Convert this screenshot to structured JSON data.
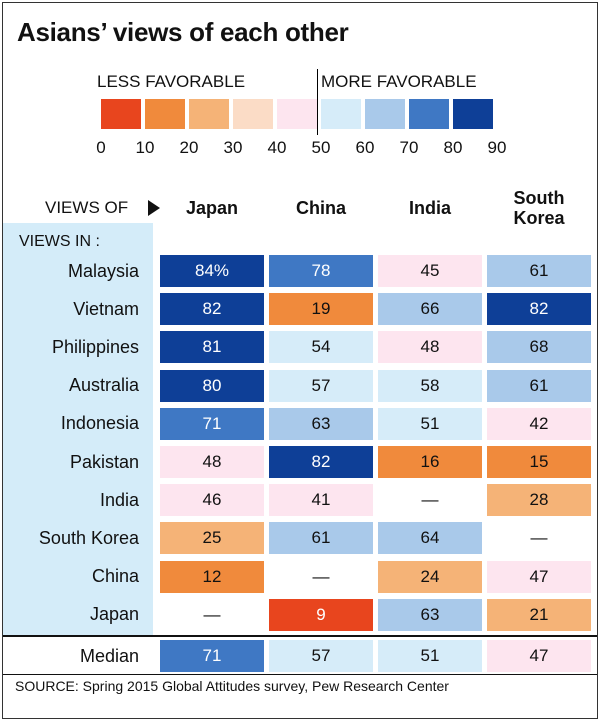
{
  "title": "Asians’ views of each other",
  "legend": {
    "less_label": "LESS FAVORABLE",
    "more_label": "MORE FAVORABLE",
    "ticks": [
      "0",
      "10",
      "20",
      "30",
      "40",
      "50",
      "60",
      "70",
      "80",
      "90"
    ],
    "bins": [
      {
        "from": 0,
        "to": 10,
        "color": "#e8451e"
      },
      {
        "from": 10,
        "to": 20,
        "color": "#f08a3c"
      },
      {
        "from": 20,
        "to": 30,
        "color": "#f5b377"
      },
      {
        "from": 30,
        "to": 40,
        "color": "#fbdcc6"
      },
      {
        "from": 40,
        "to": 50,
        "color": "#fde5ef"
      },
      {
        "from": 50,
        "to": 60,
        "color": "#d6ecf9"
      },
      {
        "from": 60,
        "to": 70,
        "color": "#a9c9ea"
      },
      {
        "from": 70,
        "to": 80,
        "color": "#3f78c4"
      },
      {
        "from": 80,
        "to": 90,
        "color": "#0e3f97"
      }
    ]
  },
  "views_of_label": "VIEWS OF",
  "views_in_label": "VIEWS IN :",
  "source": "SOURCE: Spring 2015 Global Attitudes survey, Pew Research Center",
  "chart_data": {
    "type": "heatmap",
    "title": "Asians’ views of each other",
    "columns": [
      "Japan",
      "China",
      "India",
      "South Korea"
    ],
    "rows": [
      {
        "label": "Malaysia",
        "values": [
          "84%",
          "78",
          "45",
          "61"
        ]
      },
      {
        "label": "Vietnam",
        "values": [
          "82",
          "19",
          "66",
          "82"
        ]
      },
      {
        "label": "Philippines",
        "values": [
          "81",
          "54",
          "48",
          "68"
        ]
      },
      {
        "label": "Australia",
        "values": [
          "80",
          "57",
          "58",
          "61"
        ]
      },
      {
        "label": "Indonesia",
        "values": [
          "71",
          "63",
          "51",
          "42"
        ]
      },
      {
        "label": "Pakistan",
        "values": [
          "48",
          "82",
          "16",
          "15"
        ]
      },
      {
        "label": "India",
        "values": [
          "46",
          "41",
          "—",
          "28"
        ]
      },
      {
        "label": "South Korea",
        "values": [
          "25",
          "61",
          "64",
          "—"
        ]
      },
      {
        "label": "China",
        "values": [
          "12",
          "—",
          "24",
          "47"
        ]
      },
      {
        "label": "Japan",
        "values": [
          "—",
          "9",
          "63",
          "21"
        ]
      }
    ],
    "median": {
      "label": "Median",
      "values": [
        "71",
        "57",
        "51",
        "47"
      ]
    },
    "scale": [
      0,
      90
    ]
  }
}
